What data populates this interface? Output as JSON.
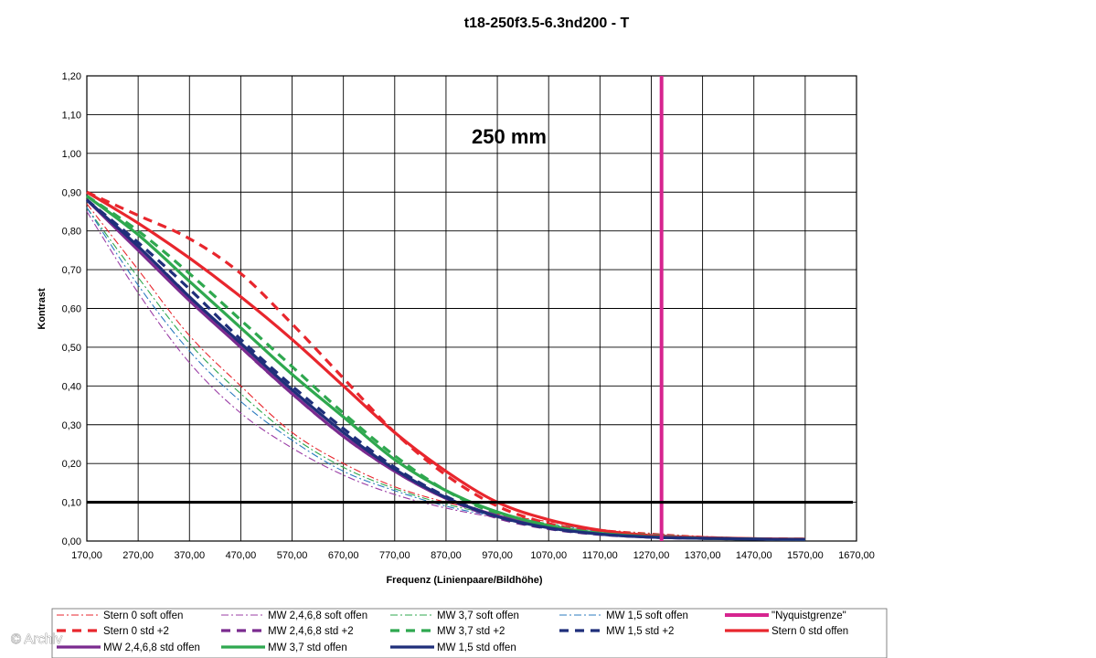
{
  "watermark": "© Archiv",
  "chart_data": {
    "type": "line",
    "title": "t18-250f3.5-6.3nd200 - T",
    "annotation": "250 mm",
    "xlabel": "Frequenz (Linienpaare/Bildhöhe)",
    "ylabel": "Kontrast",
    "xlim": [
      170,
      1670
    ],
    "ylim": [
      0,
      1.2
    ],
    "x_ticks": [
      "170,00",
      "270,00",
      "370,00",
      "470,00",
      "570,00",
      "670,00",
      "770,00",
      "870,00",
      "970,00",
      "1070,00",
      "1170,00",
      "1270,00",
      "1370,00",
      "1470,00",
      "1570,00",
      "1670,00"
    ],
    "y_ticks": [
      "0,00",
      "0,10",
      "0,20",
      "0,30",
      "0,40",
      "0,50",
      "0,60",
      "0,70",
      "0,80",
      "0,90",
      "1,00",
      "1,10",
      "1,20"
    ],
    "grid": true,
    "legend_position": "bottom",
    "reference_lines": [
      {
        "type": "horizontal",
        "y": 0.1,
        "color": "#000000"
      }
    ],
    "series": [
      {
        "name": "Stern 0 soft offen",
        "color": "#e8262d",
        "style": "dashdot",
        "weight": "thin",
        "x": [
          170,
          270,
          370,
          470,
          570,
          670,
          770,
          870,
          970,
          1070,
          1170,
          1270,
          1370,
          1470,
          1570
        ],
        "y": [
          0.87,
          0.7,
          0.53,
          0.4,
          0.28,
          0.2,
          0.14,
          0.1,
          0.07,
          0.05,
          0.03,
          0.02,
          0.012,
          0.008,
          0.005
        ]
      },
      {
        "name": "MW 2,4,6,8 soft offen",
        "color": "#9b3ea6",
        "style": "dashdot",
        "weight": "thin",
        "x": [
          170,
          270,
          370,
          470,
          570,
          670,
          770,
          870,
          970,
          1070,
          1170,
          1270,
          1370,
          1470,
          1570
        ],
        "y": [
          0.85,
          0.64,
          0.46,
          0.33,
          0.24,
          0.17,
          0.12,
          0.085,
          0.06,
          0.04,
          0.025,
          0.016,
          0.01,
          0.007,
          0.005
        ]
      },
      {
        "name": "MW 3,7 soft offen",
        "color": "#2fa84f",
        "style": "dashdot",
        "weight": "thin",
        "x": [
          170,
          270,
          370,
          470,
          570,
          670,
          770,
          870,
          970,
          1070,
          1170,
          1270,
          1370,
          1470,
          1570
        ],
        "y": [
          0.86,
          0.68,
          0.51,
          0.38,
          0.27,
          0.19,
          0.135,
          0.095,
          0.067,
          0.045,
          0.028,
          0.018,
          0.011,
          0.008,
          0.005
        ]
      },
      {
        "name": "MW 1,5 soft offen",
        "color": "#2b7bbf",
        "style": "dashdot",
        "weight": "thin",
        "x": [
          170,
          270,
          370,
          470,
          570,
          670,
          770,
          870,
          970,
          1070,
          1170,
          1270,
          1370,
          1470,
          1570
        ],
        "y": [
          0.86,
          0.66,
          0.49,
          0.36,
          0.26,
          0.18,
          0.13,
          0.09,
          0.063,
          0.043,
          0.027,
          0.017,
          0.011,
          0.007,
          0.005
        ]
      },
      {
        "name": "\"Nyquistgrenze\"",
        "color": "#d6248f",
        "style": "solid",
        "weight": "nyquist",
        "x": [
          1290,
          1290
        ],
        "y": [
          0,
          1.2
        ]
      },
      {
        "name": "Stern 0 std +2",
        "color": "#e8262d",
        "style": "dash",
        "weight": "thick",
        "x": [
          170,
          270,
          370,
          470,
          570,
          670,
          770,
          870,
          970,
          1070,
          1170,
          1270,
          1370,
          1470,
          1570
        ],
        "y": [
          0.9,
          0.84,
          0.78,
          0.69,
          0.56,
          0.42,
          0.28,
          0.17,
          0.09,
          0.045,
          0.022,
          0.012,
          0.008,
          0.006,
          0.005
        ]
      },
      {
        "name": "MW 2,4,6,8 std +2",
        "color": "#7a2b8f",
        "style": "dash",
        "weight": "thick",
        "x": [
          170,
          270,
          370,
          470,
          570,
          670,
          770,
          870,
          970,
          1070,
          1170,
          1270,
          1370,
          1470,
          1570
        ],
        "y": [
          0.88,
          0.76,
          0.63,
          0.5,
          0.38,
          0.27,
          0.18,
          0.11,
          0.06,
          0.032,
          0.017,
          0.01,
          0.007,
          0.005,
          0.004
        ]
      },
      {
        "name": "MW 3,7 std +2",
        "color": "#2fa84f",
        "style": "dash",
        "weight": "thick",
        "x": [
          170,
          270,
          370,
          470,
          570,
          670,
          770,
          870,
          970,
          1070,
          1170,
          1270,
          1370,
          1470,
          1570
        ],
        "y": [
          0.89,
          0.8,
          0.69,
          0.57,
          0.45,
          0.33,
          0.22,
          0.13,
          0.07,
          0.036,
          0.019,
          0.011,
          0.007,
          0.005,
          0.004
        ]
      },
      {
        "name": "MW 1,5 std +2",
        "color": "#1f2f7a",
        "style": "dash",
        "weight": "thick",
        "x": [
          170,
          270,
          370,
          470,
          570,
          670,
          770,
          870,
          970,
          1070,
          1170,
          1270,
          1370,
          1470,
          1570
        ],
        "y": [
          0.88,
          0.77,
          0.65,
          0.52,
          0.4,
          0.29,
          0.19,
          0.115,
          0.063,
          0.033,
          0.018,
          0.01,
          0.007,
          0.005,
          0.004
        ]
      },
      {
        "name": "Stern 0 std offen",
        "color": "#e8262d",
        "style": "solid",
        "weight": "thick",
        "x": [
          170,
          270,
          370,
          470,
          570,
          670,
          770,
          870,
          970,
          1070,
          1170,
          1270,
          1370,
          1470,
          1570
        ],
        "y": [
          0.9,
          0.82,
          0.73,
          0.63,
          0.52,
          0.4,
          0.28,
          0.18,
          0.1,
          0.055,
          0.028,
          0.014,
          0.009,
          0.006,
          0.005
        ]
      },
      {
        "name": "MW 2,4,6,8 std offen",
        "color": "#7a2b8f",
        "style": "solid",
        "weight": "thick",
        "x": [
          170,
          270,
          370,
          470,
          570,
          670,
          770,
          870,
          970,
          1070,
          1170,
          1270,
          1370,
          1470,
          1570
        ],
        "y": [
          0.88,
          0.75,
          0.62,
          0.5,
          0.38,
          0.27,
          0.18,
          0.11,
          0.065,
          0.035,
          0.018,
          0.01,
          0.007,
          0.005,
          0.004
        ]
      },
      {
        "name": "MW 3,7 std offen",
        "color": "#2fa84f",
        "style": "solid",
        "weight": "thick",
        "x": [
          170,
          270,
          370,
          470,
          570,
          670,
          770,
          870,
          970,
          1070,
          1170,
          1270,
          1370,
          1470,
          1570
        ],
        "y": [
          0.89,
          0.79,
          0.67,
          0.55,
          0.43,
          0.32,
          0.21,
          0.13,
          0.075,
          0.04,
          0.02,
          0.011,
          0.007,
          0.005,
          0.004
        ]
      },
      {
        "name": "MW 1,5 std offen",
        "color": "#1f2f7a",
        "style": "solid",
        "weight": "thick",
        "x": [
          170,
          270,
          370,
          470,
          570,
          670,
          770,
          870,
          970,
          1070,
          1170,
          1270,
          1370,
          1470,
          1570
        ],
        "y": [
          0.88,
          0.76,
          0.63,
          0.51,
          0.39,
          0.28,
          0.185,
          0.112,
          0.063,
          0.034,
          0.018,
          0.01,
          0.007,
          0.005,
          0.004
        ]
      }
    ]
  }
}
